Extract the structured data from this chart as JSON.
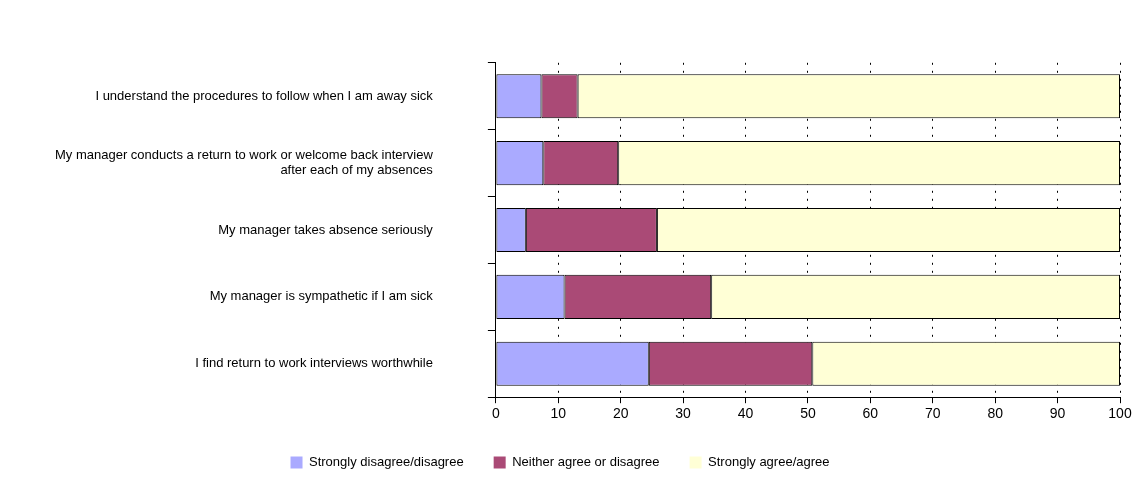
{
  "chart_data": {
    "type": "bar",
    "orientation": "horizontal",
    "stacked": true,
    "categories": [
      "I understand the procedures to follow when I am away sick",
      "My manager conducts a return to work or welcome back interview after each of my absences",
      "My manager takes absence seriously",
      "My manager is sympathetic if I am sick",
      "I find return to work interviews worthwhile"
    ],
    "series": [
      {
        "name": "Strongly disagree/disagree",
        "color": "#aaaaff",
        "values": [
          7.3,
          7.6,
          4.8,
          11.0,
          24.5
        ]
      },
      {
        "name": "Neither agree or disagree",
        "color": "#aa4a76",
        "values": [
          5.8,
          12.0,
          21.0,
          23.5,
          26.2
        ]
      },
      {
        "name": "Strongly agree/agree",
        "color": "#ffffd6",
        "values": [
          86.9,
          80.4,
          74.2,
          65.5,
          49.3
        ]
      }
    ],
    "xlim": [
      0,
      100
    ],
    "xticks": [
      0,
      10,
      20,
      30,
      40,
      50,
      60,
      70,
      80,
      90,
      100
    ],
    "grid": "x",
    "legend": "bottom"
  }
}
